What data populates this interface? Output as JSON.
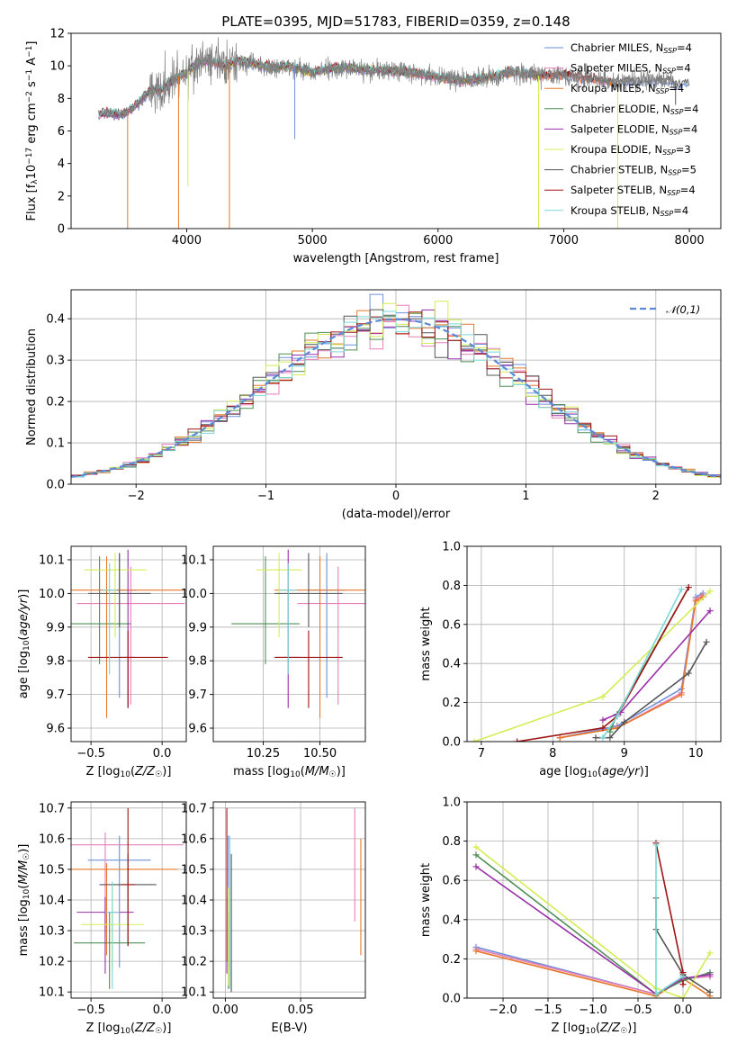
{
  "figure": {
    "title": "PLATE=0395, MJD=51783, FIBERID=0359, z=0.148",
    "model_colors": [
      "#6f8fd8",
      "#e87fb8",
      "#e8782a",
      "#4f8f55",
      "#9a2ea8",
      "#d4ec54",
      "#555555",
      "#a01515",
      "#7ad8d8"
    ]
  },
  "chart_data": [
    {
      "id": "spectrum",
      "type": "line",
      "xlabel": "wavelength [Angstrom, rest frame]",
      "ylabel": "Flux [f_λ10^-17 erg cm^-2 s^-1 A^-1]",
      "xlim": [
        3080,
        8250
      ],
      "ylim": [
        0,
        12
      ],
      "xticks": [
        4000,
        5000,
        6000,
        7000,
        8000
      ],
      "yticks": [
        0,
        2,
        4,
        6,
        8,
        10,
        12
      ],
      "grid": false,
      "legend": "upper-right",
      "data_series": {
        "name": "",
        "color": "#808080",
        "x": [
          3300,
          3400,
          3500,
          3600,
          3700,
          3800,
          3900,
          4000,
          4100,
          4200,
          4300,
          4400,
          4500,
          4600,
          4700,
          4800,
          4900,
          5000,
          5200,
          5400,
          5600,
          5800,
          6000,
          6200,
          6400,
          6600,
          6800,
          7000,
          7200,
          7400,
          7600,
          7800,
          7900
        ],
        "y": [
          7.0,
          7.1,
          7.0,
          7.6,
          8.4,
          8.6,
          9.2,
          9.6,
          10.2,
          10.3,
          10.0,
          10.3,
          10.2,
          10.0,
          9.9,
          10.0,
          9.8,
          9.6,
          9.9,
          9.8,
          9.7,
          9.6,
          9.3,
          9.1,
          9.3,
          9.6,
          9.4,
          9.5,
          9.2,
          9.0,
          9.1,
          9.1,
          8.9
        ],
        "drops": [
          [
            3530,
            0
          ],
          [
            3935,
            0
          ],
          [
            4010,
            2.6
          ],
          [
            4340,
            0
          ],
          [
            4860,
            5.5
          ],
          [
            6800,
            0
          ],
          [
            7430,
            0
          ],
          [
            7890,
            7.6
          ]
        ]
      },
      "legend_entries": [
        "Chabrier MILES, N_SSP=4",
        "Salpeter MILES, N_SSP=4",
        "Kroupa MILES, N_SSP=4",
        "Chabrier ELODIE, N_SSP=4",
        "Salpeter ELODIE, N_SSP=4",
        "Kroupa ELODIE, N_SSP=3",
        "Chabrier STELIB, N_SSP=5",
        "Salpeter STELIB, N_SSP=4",
        "Kroupa STELIB, N_SSP=4"
      ],
      "model_spans": [
        [
          3300,
          8000
        ],
        [
          3300,
          7400
        ],
        [
          3550,
          7400
        ],
        [
          3300,
          6800
        ],
        [
          3300,
          6800
        ],
        [
          3950,
          6800
        ],
        [
          3300,
          8000
        ],
        [
          3300,
          7400
        ],
        [
          3300,
          6800
        ]
      ]
    },
    {
      "id": "residuals",
      "type": "histogram",
      "xlabel": "(data-model)/error",
      "ylabel": "Normed distribution",
      "xlim": [
        -2.5,
        2.5
      ],
      "ylim": [
        0,
        0.47
      ],
      "xticks": [
        -2,
        -1,
        0,
        1,
        2
      ],
      "yticks": [
        0.0,
        0.1,
        0.2,
        0.3,
        0.4
      ],
      "grid": true,
      "legend": "top-right",
      "reference": {
        "name": "𝒩(0,1)",
        "color": "#5b8ad8"
      },
      "bin_width": 0.1
    },
    {
      "id": "age-vs-Z",
      "type": "scatter",
      "xlabel": "Z [log10(Z/Z☉)]",
      "ylabel": "age [log10(age/yr)]",
      "xlim": [
        -0.64,
        0.17
      ],
      "ylim": [
        9.56,
        10.14
      ],
      "xticks": [
        -0.5,
        0.0
      ],
      "yticks": [
        9.6,
        9.7,
        9.8,
        9.9,
        10.0,
        10.1
      ],
      "grid": true,
      "points": [
        {
          "x": -0.3,
          "y": 10.01,
          "xerr": 0.12,
          "yerr": [
            0.32,
            0.11
          ]
        },
        {
          "x": -0.22,
          "y": 9.97,
          "xerr": 0.38,
          "yerr": [
            0.3,
            0.11
          ]
        },
        {
          "x": -0.39,
          "y": 10.01,
          "xerr": 0.54,
          "yerr": [
            0.38,
            0.1
          ]
        },
        {
          "x": -0.44,
          "y": 9.91,
          "xerr": 0.22,
          "yerr": [
            0.12,
            0.2
          ]
        },
        {
          "x": -0.24,
          "y": 9.81,
          "xerr": 0.05,
          "yerr": [
            0.15,
            0.32
          ]
        },
        {
          "x": -0.33,
          "y": 10.07,
          "xerr": 0.22,
          "yerr": [
            0.2,
            0.05
          ]
        },
        {
          "x": -0.3,
          "y": 10.0,
          "xerr": 0.22,
          "yerr": [
            0.1,
            0.12
          ]
        },
        {
          "x": -0.24,
          "y": 9.81,
          "xerr": 0.28,
          "yerr": [
            0.15,
            0.08
          ]
        },
        {
          "x": -0.37,
          "y": 10.01,
          "xerr": 0.05,
          "yerr": [
            0.25,
            0.08
          ]
        }
      ]
    },
    {
      "id": "age-vs-mass",
      "type": "scatter",
      "xlabel": "mass [log10(M/M☉)]",
      "ylabel": "",
      "xlim": [
        10.03,
        10.7
      ],
      "ylim": [
        9.56,
        10.14
      ],
      "xticks": [
        10.25,
        10.5
      ],
      "yticks": [
        9.6,
        9.7,
        9.8,
        9.9,
        10.0,
        10.1
      ],
      "grid": true,
      "points": [
        {
          "x": 10.53,
          "y": 10.01,
          "xerr": 0.08,
          "yerr": [
            0.32,
            0.11
          ]
        },
        {
          "x": 10.58,
          "y": 9.97,
          "xerr": 0.18,
          "yerr": [
            0.3,
            0.11
          ]
        },
        {
          "x": 10.5,
          "y": 10.01,
          "xerr": 0.2,
          "yerr": [
            0.38,
            0.1
          ]
        },
        {
          "x": 10.26,
          "y": 9.91,
          "xerr": 0.15,
          "yerr": [
            0.12,
            0.2
          ]
        },
        {
          "x": 10.36,
          "y": 9.81,
          "xerr": 0.05,
          "yerr": [
            0.15,
            0.32
          ]
        },
        {
          "x": 10.32,
          "y": 10.07,
          "xerr": 0.1,
          "yerr": [
            0.2,
            0.05
          ]
        },
        {
          "x": 10.45,
          "y": 10.0,
          "xerr": 0.15,
          "yerr": [
            0.1,
            0.12
          ]
        },
        {
          "x": 10.45,
          "y": 9.81,
          "xerr": 0.15,
          "yerr": [
            0.15,
            0.08
          ]
        },
        {
          "x": 10.36,
          "y": 10.01,
          "xerr": 0.04,
          "yerr": [
            0.25,
            0.08
          ]
        }
      ]
    },
    {
      "id": "massweight-vs-age",
      "type": "line",
      "xlabel": "age [log10(age/yr)]",
      "ylabel": "mass weight",
      "xlim": [
        6.8,
        10.35
      ],
      "ylim": [
        0,
        1.0
      ],
      "xticks": [
        7,
        8,
        9,
        10
      ],
      "yticks": [
        0.0,
        0.2,
        0.4,
        0.6,
        0.8,
        1.0
      ],
      "grid": true,
      "series": [
        {
          "x": [
            8.1,
            8.9,
            9.8,
            10.0,
            10.1
          ],
          "y": [
            0.02,
            0.08,
            0.27,
            0.74,
            0.76
          ]
        },
        {
          "x": [
            8.1,
            8.9,
            9.8,
            10.0,
            10.1
          ],
          "y": [
            0.02,
            0.07,
            0.25,
            0.73,
            0.75
          ]
        },
        {
          "x": [
            8.1,
            8.9,
            9.8,
            10.0,
            10.1
          ],
          "y": [
            0.02,
            0.07,
            0.24,
            0.72,
            0.74
          ]
        },
        {
          "x": [
            8.8,
            8.9,
            9.9
          ],
          "y": [
            0.05,
            0.14,
            0.79
          ]
        },
        {
          "x": [
            8.7,
            8.95,
            10.2
          ],
          "y": [
            0.11,
            0.15,
            0.67
          ]
        },
        {
          "x": [
            6.9,
            8.7,
            10.2
          ],
          "y": [
            0.0,
            0.23,
            0.77
          ]
        },
        {
          "x": [
            8.6,
            8.8,
            9.0,
            9.9,
            10.15
          ],
          "y": [
            0.02,
            0.02,
            0.1,
            0.35,
            0.51
          ]
        },
        {
          "x": [
            7.5,
            8.7,
            8.9,
            9.9
          ],
          "y": [
            0.0,
            0.07,
            0.13,
            0.79
          ]
        },
        {
          "x": [
            8.7,
            8.9,
            9.8
          ],
          "y": [
            0.02,
            0.13,
            0.78
          ]
        }
      ]
    },
    {
      "id": "mass-vs-Z",
      "type": "scatter",
      "xlabel": "Z [log10(Z/Z☉)]",
      "ylabel": "mass [log10(M/M☉)]",
      "xlim": [
        -0.64,
        0.17
      ],
      "ylim": [
        10.08,
        10.72
      ],
      "xticks": [
        -0.5,
        0.0
      ],
      "yticks": [
        10.1,
        10.2,
        10.3,
        10.4,
        10.5,
        10.6,
        10.7
      ],
      "grid": true,
      "points": [
        {
          "x": -0.3,
          "y": 10.53,
          "xerr": 0.22,
          "yerr": [
            0.35,
            0.08
          ]
        },
        {
          "x": -0.4,
          "y": 10.58,
          "xerr": 0.55,
          "yerr": [
            0.3,
            0.04
          ]
        },
        {
          "x": -0.39,
          "y": 10.5,
          "xerr": 0.5,
          "yerr": [
            0.28,
            0.02
          ]
        },
        {
          "x": -0.37,
          "y": 10.26,
          "xerr": 0.25,
          "yerr": [
            0.15,
            0.1
          ]
        },
        {
          "x": -0.4,
          "y": 10.36,
          "xerr": 0.2,
          "yerr": [
            0.2,
            0.05
          ]
        },
        {
          "x": -0.35,
          "y": 10.32,
          "xerr": 0.22,
          "yerr": [
            0.15,
            0.12
          ]
        },
        {
          "x": -0.24,
          "y": 10.45,
          "xerr": 0.2,
          "yerr": [
            0.2,
            0.1
          ]
        },
        {
          "x": -0.24,
          "y": 10.45,
          "xerr": 0.05,
          "yerr": [
            0.2,
            0.25
          ]
        },
        {
          "x": -0.35,
          "y": 10.36,
          "xerr": 0.05,
          "yerr": [
            0.25,
            0.1
          ]
        }
      ]
    },
    {
      "id": "mass-vs-ebv",
      "type": "scatter",
      "xlabel": "E(B-V)",
      "ylabel": "",
      "xlim": [
        -0.008,
        0.093
      ],
      "ylim": [
        10.08,
        10.72
      ],
      "xticks": [
        0.0,
        0.05
      ],
      "yticks": [
        10.1,
        10.2,
        10.3,
        10.4,
        10.5,
        10.6,
        10.7
      ],
      "grid": true,
      "points": [
        {
          "x": 0.002,
          "y": 10.53,
          "yerr": [
            0.35,
            0.08
          ]
        },
        {
          "x": 0.086,
          "y": 10.58,
          "yerr": [
            0.25,
            0.12
          ]
        },
        {
          "x": 0.09,
          "y": 10.5,
          "yerr": [
            0.28,
            0.1
          ]
        },
        {
          "x": 0.002,
          "y": 10.26,
          "yerr": [
            0.15,
            0.1
          ]
        },
        {
          "x": 0.001,
          "y": 10.36,
          "yerr": [
            0.2,
            0.05
          ]
        },
        {
          "x": 0.002,
          "y": 10.32,
          "yerr": [
            0.2,
            0.12
          ]
        },
        {
          "x": 0.004,
          "y": 10.45,
          "yerr": [
            0.35,
            0.1
          ]
        },
        {
          "x": 0.001,
          "y": 10.45,
          "yerr": [
            0.25,
            0.25
          ]
        },
        {
          "x": 0.003,
          "y": 10.36,
          "yerr": [
            0.25,
            0.25
          ]
        }
      ]
    },
    {
      "id": "massweight-vs-Z",
      "type": "line",
      "xlabel": "Z [log10(Z/Z☉)]",
      "ylabel": "mass weight",
      "xlim": [
        -2.4,
        0.42
      ],
      "ylim": [
        0,
        1.0
      ],
      "xticks": [
        -2.0,
        -1.5,
        -1.0,
        -0.5,
        0.0
      ],
      "yticks": [
        0.0,
        0.2,
        0.4,
        0.6,
        0.8,
        1.0
      ],
      "grid": true,
      "series": [
        {
          "x": [
            -2.3,
            -0.3,
            0.0,
            0.3
          ],
          "y": [
            0.26,
            0.02,
            0.1,
            0.11
          ]
        },
        {
          "x": [
            -2.3,
            -0.3,
            0.0,
            0.3
          ],
          "y": [
            0.25,
            0.02,
            0.1,
            0.11
          ]
        },
        {
          "x": [
            -2.3,
            -0.3,
            0.0,
            0.3
          ],
          "y": [
            0.24,
            0.01,
            0.1,
            0.01
          ]
        },
        {
          "x": [
            -2.3,
            -0.3,
            0.0,
            0.3
          ],
          "y": [
            0.73,
            0.02,
            0.09,
            0.13
          ]
        },
        {
          "x": [
            -2.3,
            -0.3,
            0.0,
            0.3
          ],
          "y": [
            0.67,
            0.02,
            0.1,
            0.12
          ]
        },
        {
          "x": [
            -2.3,
            -0.3,
            0.0,
            0.3
          ],
          "y": [
            0.77,
            0.05,
            0.0,
            0.23
          ]
        },
        {
          "x": [
            -0.3,
            -0.3,
            0.0,
            0.3
          ],
          "y": [
            0.51,
            0.35,
            0.12,
            0.03
          ]
        },
        {
          "x": [
            -0.3,
            0.0,
            0.0
          ],
          "y": [
            0.79,
            0.13,
            0.07
          ]
        },
        {
          "x": [
            -0.3,
            -0.3,
            0.0
          ],
          "y": [
            0.78,
            0.02,
            0.11
          ]
        }
      ]
    }
  ]
}
